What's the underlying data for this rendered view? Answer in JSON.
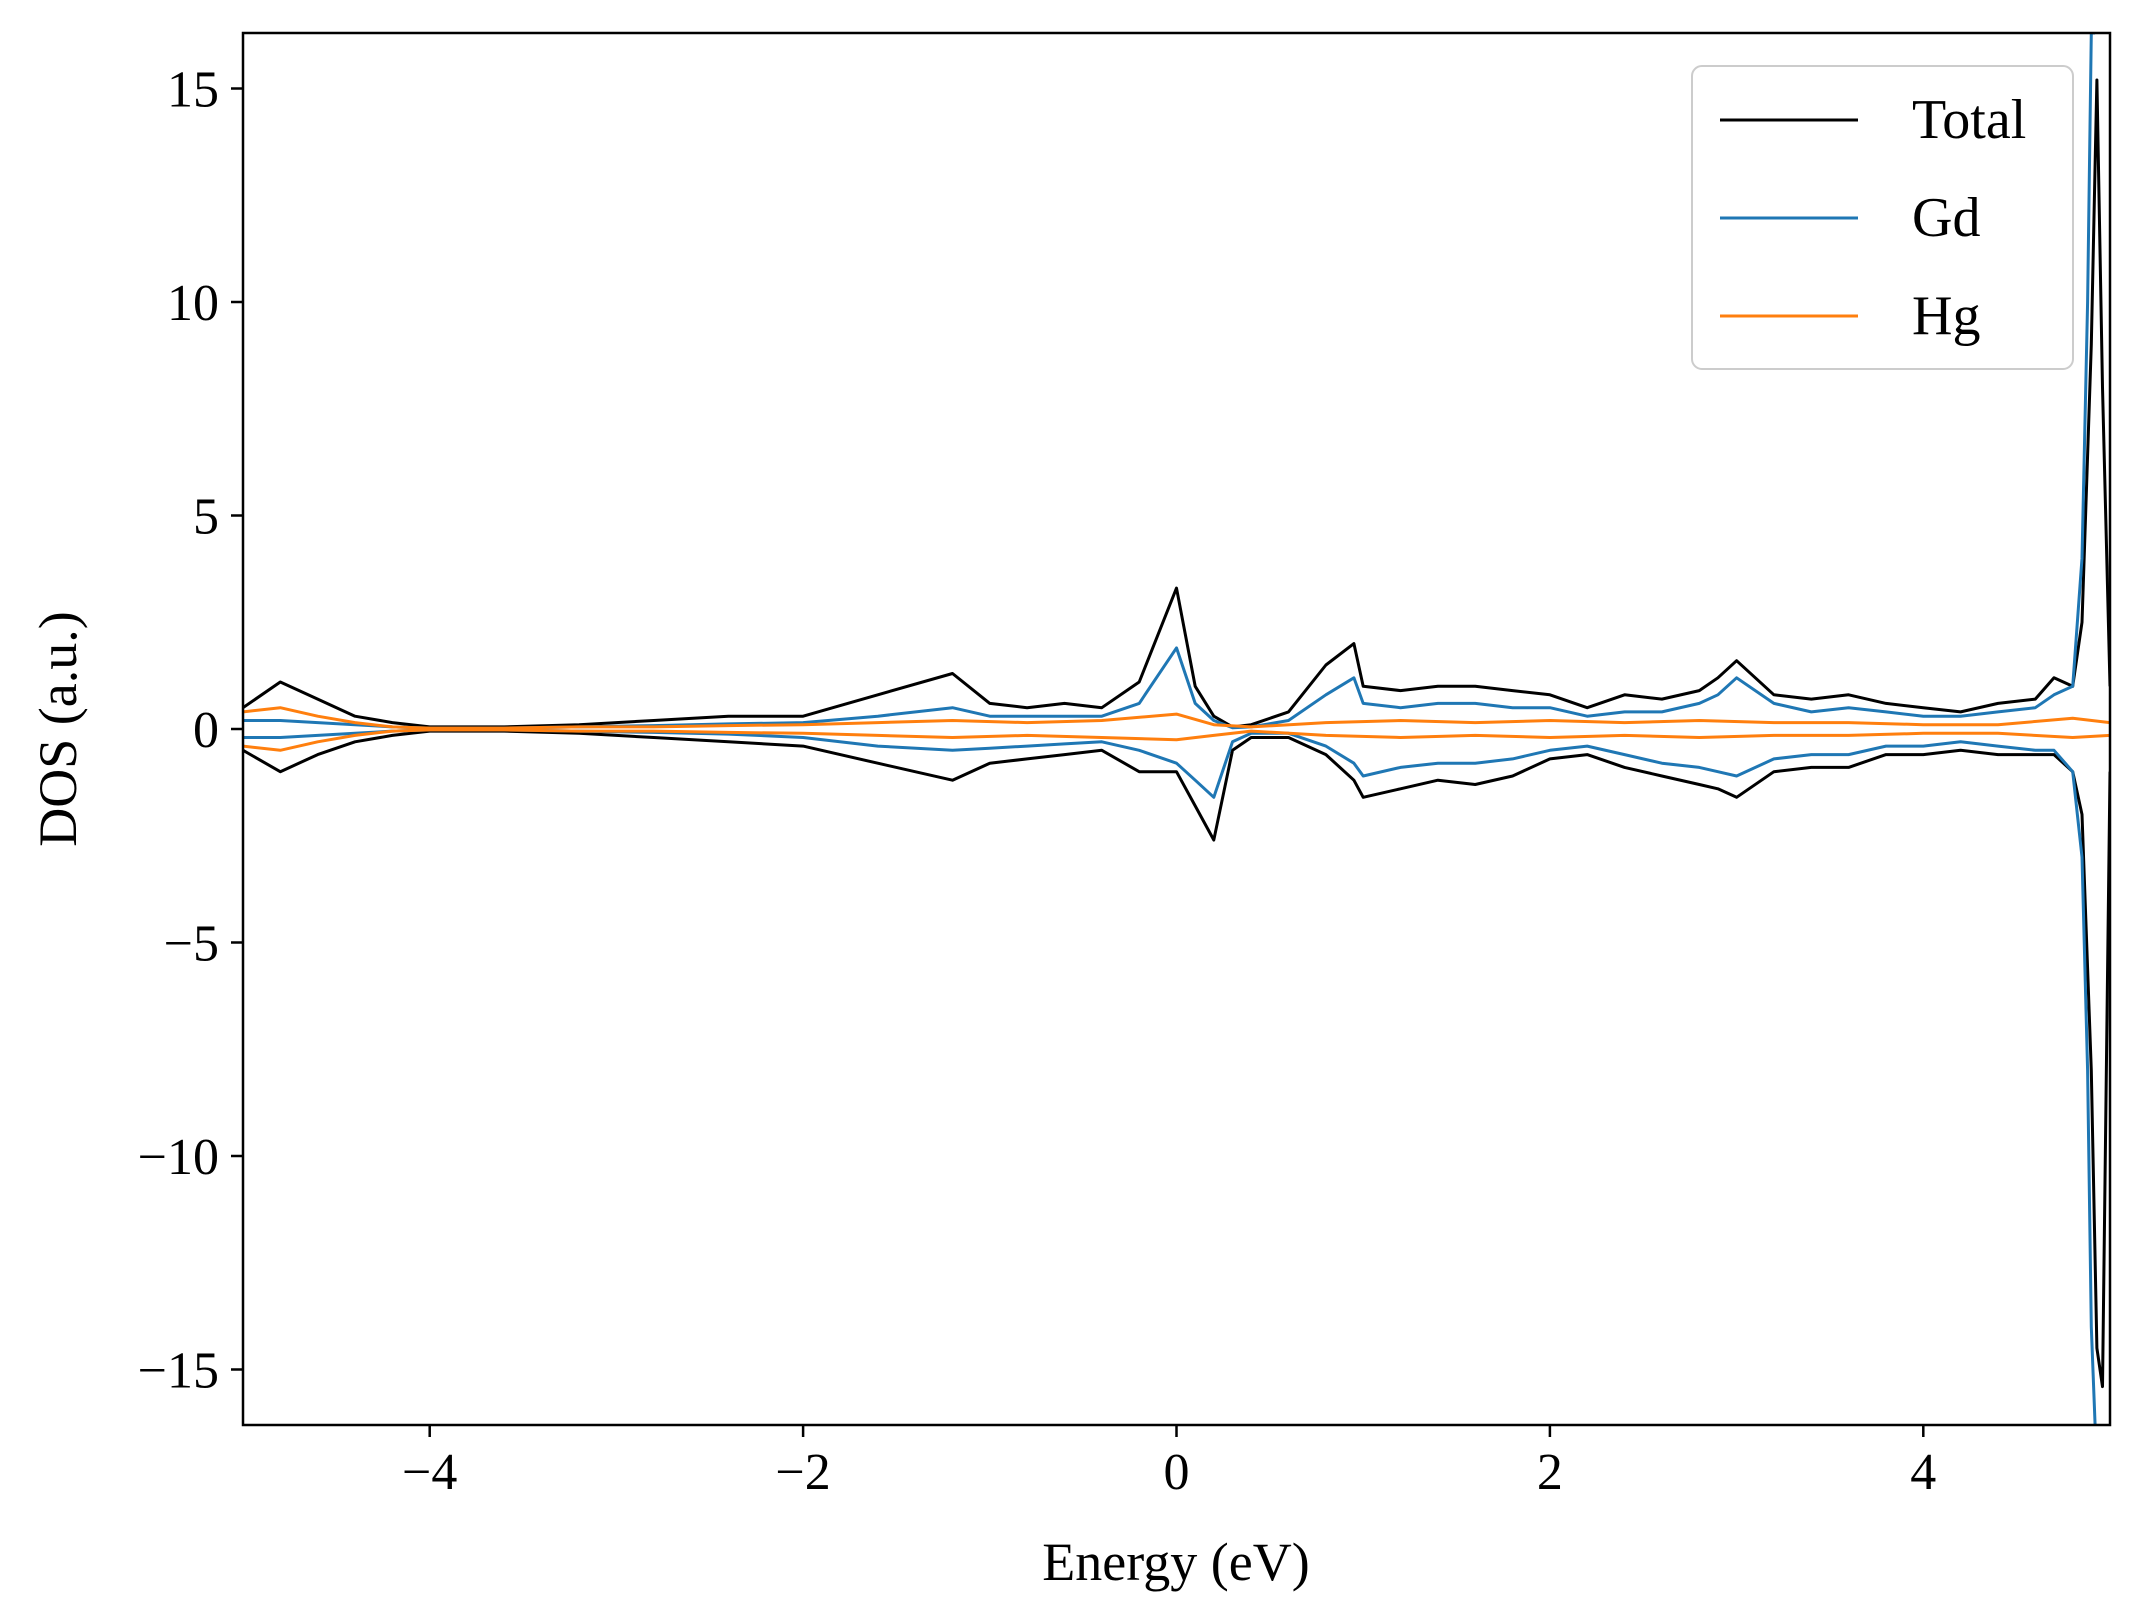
{
  "chart_data": {
    "type": "line",
    "title": "",
    "xlabel": "Energy (eV)",
    "ylabel": "DOS (a.u.)",
    "xlim": [
      -5,
      5
    ],
    "ylim": [
      -16.3,
      16.3
    ],
    "xticks": [
      -4,
      -2,
      0,
      2,
      4
    ],
    "xtick_labels": [
      "−4",
      "−2",
      "0",
      "2",
      "4"
    ],
    "yticks": [
      15,
      10,
      5,
      0,
      -5,
      -10,
      -15
    ],
    "ytick_labels": [
      "15",
      "10",
      "5",
      "0",
      "−5",
      "−10",
      "−15"
    ],
    "grid": false,
    "legend_position": "top-right",
    "series": [
      {
        "name": "Total",
        "color": "#000000",
        "x": [
          -5.0,
          -4.8,
          -4.6,
          -4.4,
          -4.2,
          -4.0,
          -3.6,
          -3.2,
          -2.8,
          -2.4,
          -2.0,
          -1.6,
          -1.2,
          -1.0,
          -0.8,
          -0.6,
          -0.4,
          -0.2,
          0.0,
          0.1,
          0.2,
          0.3,
          0.4,
          0.6,
          0.8,
          0.95,
          1.0,
          1.2,
          1.4,
          1.6,
          1.8,
          2.0,
          2.2,
          2.4,
          2.6,
          2.8,
          2.9,
          3.0,
          3.2,
          3.4,
          3.6,
          3.8,
          4.0,
          4.2,
          4.4,
          4.6,
          4.7,
          4.8,
          4.85,
          4.9,
          4.93,
          4.96,
          5.0
        ],
        "up": [
          0.5,
          1.1,
          0.7,
          0.3,
          0.15,
          0.05,
          0.05,
          0.1,
          0.2,
          0.3,
          0.3,
          0.8,
          1.3,
          0.6,
          0.5,
          0.6,
          0.5,
          1.1,
          3.3,
          1.0,
          0.3,
          0.05,
          0.1,
          0.4,
          1.5,
          2.0,
          1.0,
          0.9,
          1.0,
          1.0,
          0.9,
          0.8,
          0.5,
          0.8,
          0.7,
          0.9,
          1.2,
          1.6,
          0.8,
          0.7,
          0.8,
          0.6,
          0.5,
          0.4,
          0.6,
          0.7,
          1.2,
          1.0,
          2.5,
          9.0,
          15.2,
          8.0,
          1.0
        ],
        "down": [
          -0.5,
          -1.0,
          -0.6,
          -0.3,
          -0.15,
          -0.05,
          -0.05,
          -0.1,
          -0.2,
          -0.3,
          -0.4,
          -0.8,
          -1.2,
          -0.8,
          -0.7,
          -0.6,
          -0.5,
          -1.0,
          -1.0,
          -1.8,
          -2.6,
          -0.5,
          -0.2,
          -0.2,
          -0.6,
          -1.2,
          -1.6,
          -1.4,
          -1.2,
          -1.3,
          -1.1,
          -0.7,
          -0.6,
          -0.9,
          -1.1,
          -1.3,
          -1.4,
          -1.6,
          -1.0,
          -0.9,
          -0.9,
          -0.6,
          -0.6,
          -0.5,
          -0.6,
          -0.6,
          -0.6,
          -1.0,
          -2.0,
          -8.0,
          -14.5,
          -15.4,
          -1.0
        ]
      },
      {
        "name": "Gd",
        "color": "#1f77b4",
        "x": [
          -5.0,
          -4.8,
          -4.6,
          -4.4,
          -4.2,
          -4.0,
          -3.6,
          -3.2,
          -2.8,
          -2.4,
          -2.0,
          -1.6,
          -1.2,
          -1.0,
          -0.8,
          -0.6,
          -0.4,
          -0.2,
          0.0,
          0.1,
          0.2,
          0.3,
          0.4,
          0.6,
          0.8,
          0.95,
          1.0,
          1.2,
          1.4,
          1.6,
          1.8,
          2.0,
          2.2,
          2.4,
          2.6,
          2.8,
          2.9,
          3.0,
          3.2,
          3.4,
          3.6,
          3.8,
          4.0,
          4.2,
          4.4,
          4.6,
          4.7,
          4.8,
          4.85,
          4.88,
          4.9,
          4.92
        ],
        "up": [
          0.2,
          0.2,
          0.15,
          0.1,
          0.05,
          0.02,
          0.02,
          0.05,
          0.08,
          0.12,
          0.15,
          0.3,
          0.5,
          0.3,
          0.3,
          0.3,
          0.3,
          0.6,
          1.9,
          0.6,
          0.2,
          0.03,
          0.05,
          0.2,
          0.8,
          1.2,
          0.6,
          0.5,
          0.6,
          0.6,
          0.5,
          0.5,
          0.3,
          0.4,
          0.4,
          0.6,
          0.8,
          1.2,
          0.6,
          0.4,
          0.5,
          0.4,
          0.3,
          0.3,
          0.4,
          0.5,
          0.8,
          1.0,
          4.0,
          10.0,
          16.3,
          16.3
        ],
        "down": [
          -0.2,
          -0.2,
          -0.15,
          -0.1,
          -0.05,
          -0.02,
          -0.02,
          -0.05,
          -0.08,
          -0.12,
          -0.2,
          -0.4,
          -0.5,
          -0.45,
          -0.4,
          -0.35,
          -0.3,
          -0.5,
          -0.8,
          -1.2,
          -1.6,
          -0.3,
          -0.1,
          -0.1,
          -0.4,
          -0.8,
          -1.1,
          -0.9,
          -0.8,
          -0.8,
          -0.7,
          -0.5,
          -0.4,
          -0.6,
          -0.8,
          -0.9,
          -1.0,
          -1.1,
          -0.7,
          -0.6,
          -0.6,
          -0.4,
          -0.4,
          -0.3,
          -0.4,
          -0.5,
          -0.5,
          -1.0,
          -3.0,
          -8.0,
          -14.0,
          -16.3
        ]
      },
      {
        "name": "Hg",
        "color": "#ff7f0e",
        "x": [
          -5.0,
          -4.8,
          -4.6,
          -4.4,
          -4.2,
          -4.0,
          -3.6,
          -3.2,
          -2.8,
          -2.4,
          -2.0,
          -1.6,
          -1.2,
          -0.8,
          -0.4,
          0.0,
          0.2,
          0.4,
          0.8,
          1.2,
          1.6,
          2.0,
          2.4,
          2.8,
          3.2,
          3.6,
          4.0,
          4.4,
          4.8,
          5.0
        ],
        "up": [
          0.4,
          0.5,
          0.3,
          0.15,
          0.05,
          0.02,
          0.02,
          0.05,
          0.05,
          0.08,
          0.1,
          0.15,
          0.2,
          0.15,
          0.2,
          0.35,
          0.1,
          0.05,
          0.15,
          0.2,
          0.15,
          0.2,
          0.15,
          0.2,
          0.15,
          0.15,
          0.1,
          0.1,
          0.25,
          0.15
        ],
        "down": [
          -0.4,
          -0.5,
          -0.3,
          -0.15,
          -0.05,
          -0.02,
          -0.02,
          -0.05,
          -0.05,
          -0.08,
          -0.1,
          -0.15,
          -0.2,
          -0.15,
          -0.2,
          -0.25,
          -0.15,
          -0.05,
          -0.15,
          -0.2,
          -0.15,
          -0.2,
          -0.15,
          -0.2,
          -0.15,
          -0.15,
          -0.1,
          -0.1,
          -0.2,
          -0.15
        ]
      }
    ]
  }
}
